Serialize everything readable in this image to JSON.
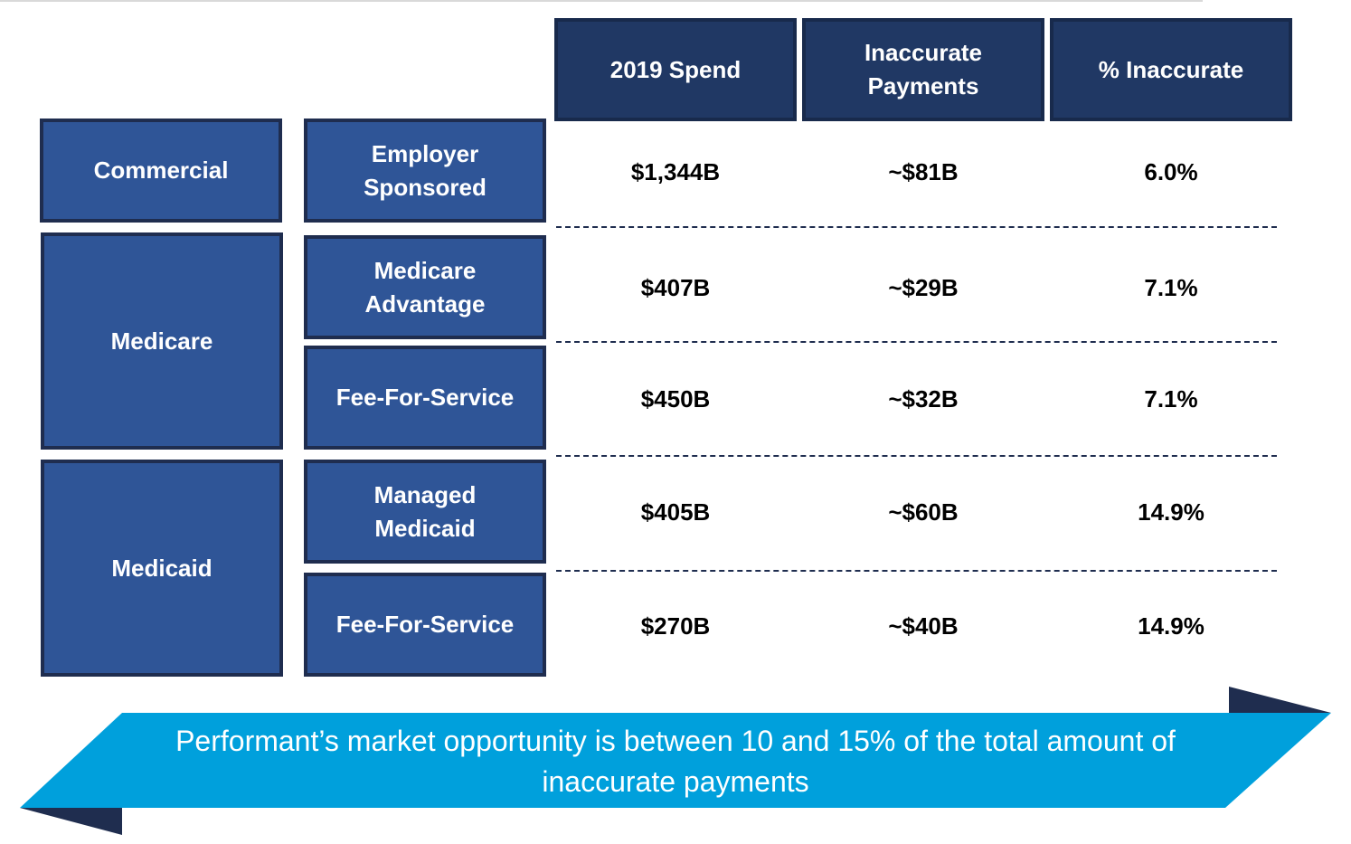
{
  "table": {
    "columns": [
      "2019 Spend",
      "Inaccurate\nPayments",
      "% Inaccurate"
    ],
    "segments": [
      {
        "label": "Commercial"
      },
      {
        "label": "Medicare"
      },
      {
        "label": "Medicaid"
      }
    ],
    "rows": [
      {
        "sub_label": "Employer\nSponsored",
        "spend": "$1,344B",
        "inaccurate": "~$81B",
        "pct": "6.0%"
      },
      {
        "sub_label": "Medicare\nAdvantage",
        "spend": "$407B",
        "inaccurate": "~$29B",
        "pct": "7.1%"
      },
      {
        "sub_label": "Fee-For-Service",
        "spend": "$450B",
        "inaccurate": "~$32B",
        "pct": "7.1%"
      },
      {
        "sub_label": "Managed\nMedicaid",
        "spend": "$405B",
        "inaccurate": "~$60B",
        "pct": "14.9%"
      },
      {
        "sub_label": "Fee-For-Service",
        "spend": "$270B",
        "inaccurate": "~$40B",
        "pct": "14.9%"
      }
    ]
  },
  "banner": {
    "text": "Performant’s market opportunity is between 10 and 15% of the total amount of inaccurate payments"
  },
  "colors": {
    "header_fill": "#203864",
    "box_fill": "#2f5597",
    "box_border": "#1f2d4f",
    "banner_fill": "#00a0dc",
    "banner_shadow": "#1f2d4f"
  }
}
